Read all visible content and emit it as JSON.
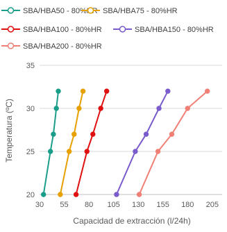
{
  "chart_data": {
    "type": "line",
    "title": "",
    "xlabel": "Capacidad de extracción (l/24h)",
    "ylabel": "Temperatura (ºC)",
    "xlim": [
      30,
      215
    ],
    "ylim": [
      20,
      35
    ],
    "xticks": [
      30,
      55,
      80,
      105,
      130,
      155,
      180,
      205
    ],
    "yticks": [
      20,
      25,
      30,
      35
    ],
    "grid": "horizontal",
    "legend_position": "top",
    "series": [
      {
        "name": "SBA/HBA50 - 80%HR",
        "color": "#1a9e8a",
        "x": [
          34,
          41,
          44,
          47,
          49
        ],
        "y": [
          20,
          25,
          27,
          30,
          32
        ]
      },
      {
        "name": "SBA/HBA75 - 80%HR",
        "color": "#e6a000",
        "x": [
          51,
          60,
          65,
          70,
          74
        ],
        "y": [
          20,
          25,
          27,
          30,
          32
        ]
      },
      {
        "name": "SBA/HBA100 - 80%HR",
        "color": "#e01010",
        "x": [
          67,
          78,
          84,
          92,
          98
        ],
        "y": [
          20,
          25,
          27,
          30,
          32
        ]
      },
      {
        "name": "SBA/HBA150 - 80%HR",
        "color": "#7a5ccc",
        "x": [
          108,
          127,
          138,
          151,
          160
        ],
        "y": [
          20,
          25,
          27,
          30,
          32
        ]
      },
      {
        "name": "SBA/HBA200 - 80%HR",
        "color": "#f07f75",
        "x": [
          131,
          150,
          164,
          180,
          200
        ],
        "y": [
          20,
          25,
          27,
          30,
          32
        ]
      }
    ]
  }
}
